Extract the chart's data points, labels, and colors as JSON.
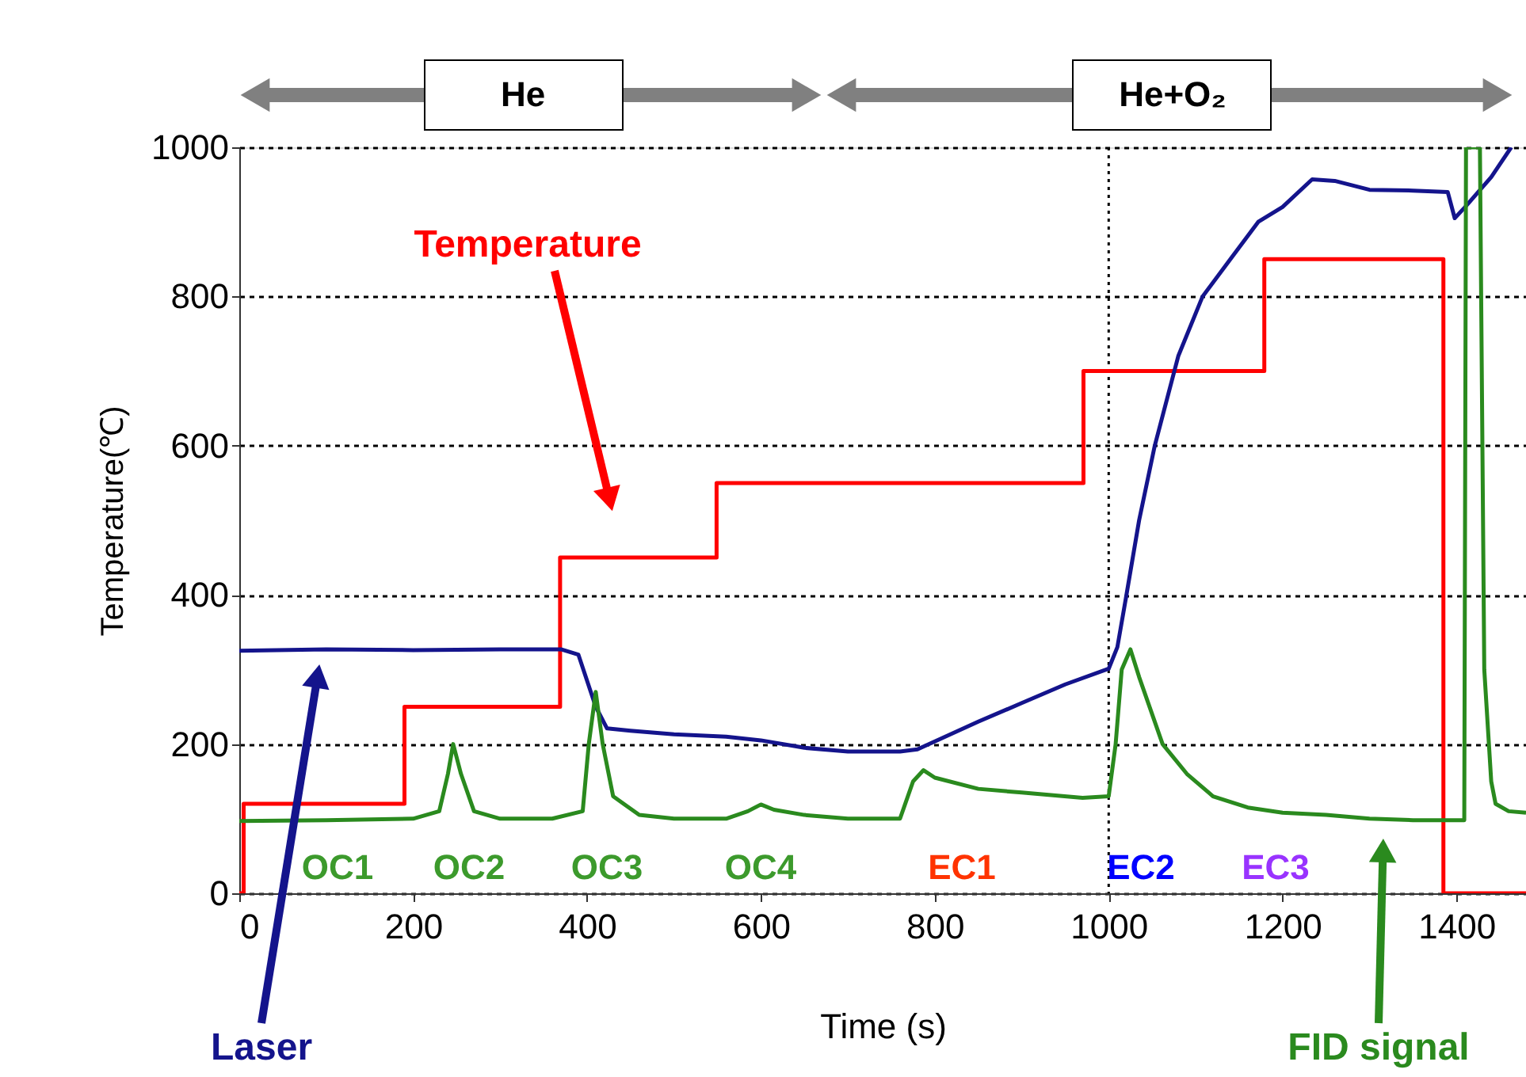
{
  "chart_data": {
    "type": "line",
    "xlabel": "Time (s)",
    "ylabel": "Temperature(℃)",
    "xlim": [
      0,
      1480
    ],
    "ylim": [
      0,
      1000
    ],
    "xticks": [
      0,
      200,
      400,
      600,
      800,
      1000,
      1200,
      1400
    ],
    "yticks": [
      0,
      200,
      400,
      600,
      800,
      1000
    ],
    "grid": "y",
    "series": [
      {
        "name": "Temperature",
        "type": "step",
        "color": "#ff0000",
        "x": [
          0,
          5,
          190,
          369,
          549,
          971,
          1179,
          1385,
          1480
        ],
        "values": [
          0,
          120,
          250,
          450,
          550,
          700,
          850,
          0,
          0
        ]
      },
      {
        "name": "Laser",
        "color": "#14148c",
        "x": [
          0,
          100,
          200,
          300,
          370,
          390,
          410,
          423,
          450,
          500,
          560,
          600,
          650,
          700,
          760,
          780,
          850,
          900,
          950,
          1000,
          1010,
          1020,
          1035,
          1053,
          1080,
          1108,
          1140,
          1172,
          1200,
          1234,
          1260,
          1300,
          1350,
          1390,
          1398,
          1410,
          1440,
          1463
        ],
        "values": [
          325,
          327,
          326,
          327,
          327,
          320,
          250,
          221,
          218,
          213,
          210,
          205,
          195,
          190,
          190,
          193,
          230,
          255,
          280,
          301,
          330,
          397,
          500,
          600,
          720,
          800,
          850,
          900,
          920,
          957,
          955,
          943,
          942,
          940,
          905,
          920,
          960,
          1000
        ]
      },
      {
        "name": "FID signal",
        "color": "#2a8a1e",
        "x": [
          0,
          100,
          200,
          230,
          240,
          246,
          255,
          270,
          300,
          360,
          395,
          402,
          410,
          418,
          430,
          460,
          500,
          560,
          585,
          600,
          615,
          650,
          700,
          760,
          775,
          787,
          800,
          850,
          900,
          970,
          1000,
          1008,
          1015,
          1025,
          1035,
          1062,
          1090,
          1120,
          1160,
          1200,
          1250,
          1300,
          1350,
          1409,
          1411,
          1427,
          1432,
          1440,
          1445,
          1460,
          1480
        ],
        "values": [
          97,
          98,
          100,
          110,
          160,
          200,
          160,
          110,
          100,
          100,
          110,
          200,
          270,
          200,
          130,
          105,
          100,
          100,
          110,
          119,
          112,
          105,
          100,
          100,
          150,
          165,
          155,
          140,
          135,
          128,
          130,
          200,
          300,
          327,
          290,
          200,
          160,
          130,
          115,
          108,
          105,
          100,
          98,
          98,
          1000,
          1000,
          300,
          150,
          120,
          110,
          108
        ]
      }
    ],
    "ref_lines": [
      {
        "axis": "x",
        "value": 1000,
        "line_style": "dotted",
        "color": "#000000"
      }
    ],
    "annotations": [
      "He",
      "He+O₂",
      "OC1",
      "OC2",
      "OC3",
      "OC4",
      "EC1",
      "EC2",
      "EC3"
    ]
  }
}
